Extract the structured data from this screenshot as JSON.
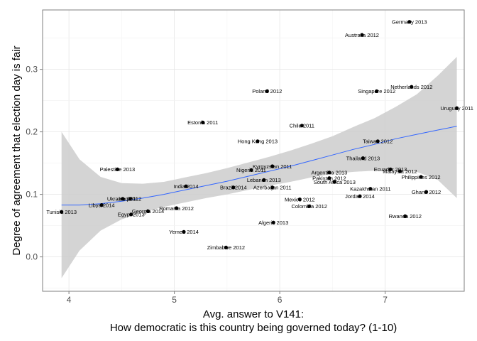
{
  "chart_data": {
    "type": "scatter",
    "xlabel_line1": "Avg. answer to V141:",
    "xlabel_line2": "How democratic is this country being governed today? (1-10)",
    "ylabel": "Degree of agreement that election day is fair",
    "xlim": [
      3.75,
      7.75
    ],
    "ylim": [
      -0.055,
      0.395
    ],
    "x_ticks": [
      4,
      5,
      6,
      7
    ],
    "x_tick_labels": [
      "4",
      "5",
      "6",
      "7"
    ],
    "y_ticks": [
      0.0,
      0.1,
      0.2,
      0.3
    ],
    "y_tick_labels": [
      "0.0",
      "0.1",
      "0.2",
      "0.3"
    ],
    "grid": true,
    "smooth": {
      "method": "loess",
      "color": "#3366FF",
      "band_color": "#cccccc",
      "x": [
        3.93,
        4.1,
        4.3,
        4.5,
        4.7,
        4.9,
        5.1,
        5.3,
        5.5,
        5.7,
        5.9,
        6.1,
        6.3,
        6.5,
        6.7,
        6.9,
        7.1,
        7.3,
        7.5,
        7.68
      ],
      "y": [
        0.083,
        0.083,
        0.085,
        0.089,
        0.094,
        0.1,
        0.107,
        0.114,
        0.121,
        0.129,
        0.137,
        0.145,
        0.154,
        0.163,
        0.172,
        0.18,
        0.189,
        0.196,
        0.203,
        0.209
      ],
      "lower": [
        -0.034,
        0.01,
        0.042,
        0.06,
        0.071,
        0.08,
        0.087,
        0.094,
        0.1,
        0.107,
        0.114,
        0.12,
        0.127,
        0.133,
        0.136,
        0.138,
        0.138,
        0.136,
        0.123,
        0.094
      ],
      "upper": [
        0.2,
        0.156,
        0.128,
        0.118,
        0.117,
        0.12,
        0.127,
        0.134,
        0.142,
        0.151,
        0.16,
        0.17,
        0.181,
        0.193,
        0.208,
        0.222,
        0.24,
        0.26,
        0.29,
        0.32
      ]
    },
    "points": [
      {
        "label": "Germany 2013",
        "x": 7.23,
        "y": 0.376
      },
      {
        "label": "Australia 2012",
        "x": 6.78,
        "y": 0.355
      },
      {
        "label": "Netherlands 2012",
        "x": 7.25,
        "y": 0.272
      },
      {
        "label": "Poland 2012",
        "x": 5.88,
        "y": 0.265
      },
      {
        "label": "Singapore 2012",
        "x": 6.92,
        "y": 0.265
      },
      {
        "label": "Uruguay 2011",
        "x": 7.68,
        "y": 0.238
      },
      {
        "label": "Estonia 2011",
        "x": 5.27,
        "y": 0.215
      },
      {
        "label": "Chile 2011",
        "x": 6.21,
        "y": 0.21
      },
      {
        "label": "Hong Kong 2013",
        "x": 5.79,
        "y": 0.185
      },
      {
        "label": "Taiwan 2012",
        "x": 6.93,
        "y": 0.185
      },
      {
        "label": "Thailand 2013",
        "x": 6.79,
        "y": 0.158
      },
      {
        "label": "Kyrgyzstan 2011",
        "x": 5.93,
        "y": 0.145
      },
      {
        "label": "Palestine 2013",
        "x": 4.46,
        "y": 0.14
      },
      {
        "label": "Nigeria 2011",
        "x": 5.73,
        "y": 0.139
      },
      {
        "label": "Ecuador 2013",
        "x": 7.05,
        "y": 0.14
      },
      {
        "label": "Malaysia 2012",
        "x": 7.14,
        "y": 0.137
      },
      {
        "label": "Argentina 2013",
        "x": 6.47,
        "y": 0.135
      },
      {
        "label": "Philippines 2012",
        "x": 7.34,
        "y": 0.128
      },
      {
        "label": "Pakistan 2012",
        "x": 6.47,
        "y": 0.126
      },
      {
        "label": "Lebanon 2013",
        "x": 5.85,
        "y": 0.123
      },
      {
        "label": "South Africa 2013",
        "x": 6.52,
        "y": 0.12
      },
      {
        "label": "India 2014",
        "x": 5.11,
        "y": 0.113
      },
      {
        "label": "Brazil 2014",
        "x": 5.56,
        "y": 0.111
      },
      {
        "label": "Azerbaijan 2011",
        "x": 5.93,
        "y": 0.111
      },
      {
        "label": "Kazakhstan 2011",
        "x": 6.86,
        "y": 0.109
      },
      {
        "label": "Ghana 2012",
        "x": 7.39,
        "y": 0.104
      },
      {
        "label": "Jordan 2014",
        "x": 6.76,
        "y": 0.097
      },
      {
        "label": "Ukraine 2011",
        "x": 4.51,
        "y": 0.093
      },
      {
        "label": "Iraq 2012",
        "x": 4.58,
        "y": 0.093
      },
      {
        "label": "Mexico 2012",
        "x": 6.19,
        "y": 0.092
      },
      {
        "label": "Libya 2014",
        "x": 4.31,
        "y": 0.083
      },
      {
        "label": "Colombia 2012",
        "x": 6.28,
        "y": 0.081
      },
      {
        "label": "Romania 2012",
        "x": 5.02,
        "y": 0.078
      },
      {
        "label": "Tunisia 2013",
        "x": 3.93,
        "y": 0.072
      },
      {
        "label": "Georgia 2014",
        "x": 4.75,
        "y": 0.073
      },
      {
        "label": "Egypt 2013",
        "x": 4.59,
        "y": 0.068
      },
      {
        "label": "Rwanda 2012",
        "x": 7.19,
        "y": 0.065
      },
      {
        "label": "Algeria 2013",
        "x": 5.94,
        "y": 0.055
      },
      {
        "label": "Yemen 2014",
        "x": 5.09,
        "y": 0.04
      },
      {
        "label": "Zimbabwe 2012",
        "x": 5.49,
        "y": 0.015
      }
    ]
  }
}
